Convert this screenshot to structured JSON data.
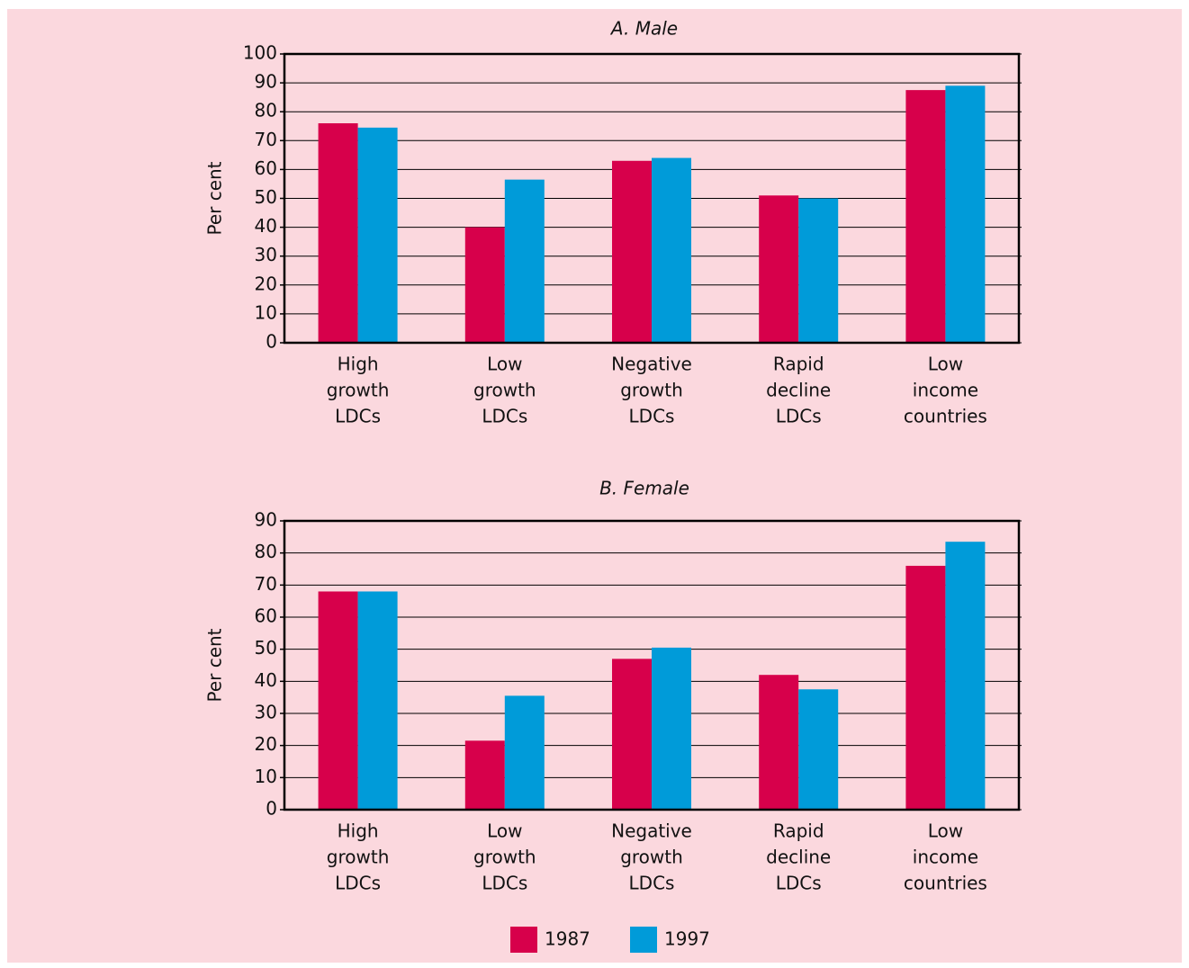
{
  "chart_data": [
    {
      "type": "bar",
      "title": "A. Male",
      "y_label": "Per cent",
      "categories": [
        [
          "High",
          "growth",
          "LDCs"
        ],
        [
          "Low",
          "growth",
          "LDCs"
        ],
        [
          "Negative",
          "growth",
          "LDCs"
        ],
        [
          "Rapid",
          "decline",
          "LDCs"
        ],
        [
          "Low",
          "income",
          "countries"
        ]
      ],
      "series": [
        {
          "name": "1987",
          "color": "#d7004b",
          "values": [
            76,
            40,
            63,
            51,
            87.5
          ]
        },
        {
          "name": "1997",
          "color": "#009bd9",
          "values": [
            74.5,
            56.5,
            64,
            50,
            89
          ]
        }
      ],
      "ylim": [
        0,
        100
      ],
      "yticks": [
        0,
        10,
        20,
        30,
        40,
        50,
        60,
        70,
        80,
        90,
        100
      ],
      "grid": true
    },
    {
      "type": "bar",
      "title": "B. Female",
      "y_label": "Per cent",
      "categories": [
        [
          "High",
          "growth",
          "LDCs"
        ],
        [
          "Low",
          "growth",
          "LDCs"
        ],
        [
          "Negative",
          "growth",
          "LDCs"
        ],
        [
          "Rapid",
          "decline",
          "LDCs"
        ],
        [
          "Low",
          "income",
          "countries"
        ]
      ],
      "series": [
        {
          "name": "1987",
          "color": "#d7004b",
          "values": [
            68,
            21.5,
            47,
            42,
            76
          ]
        },
        {
          "name": "1997",
          "color": "#009bd9",
          "values": [
            68,
            35.5,
            50.5,
            37.5,
            83.5
          ]
        }
      ],
      "ylim": [
        0,
        90
      ],
      "yticks": [
        0,
        10,
        20,
        30,
        40,
        50,
        60,
        70,
        80,
        90
      ],
      "grid": true,
      "legend": "bottom"
    }
  ]
}
